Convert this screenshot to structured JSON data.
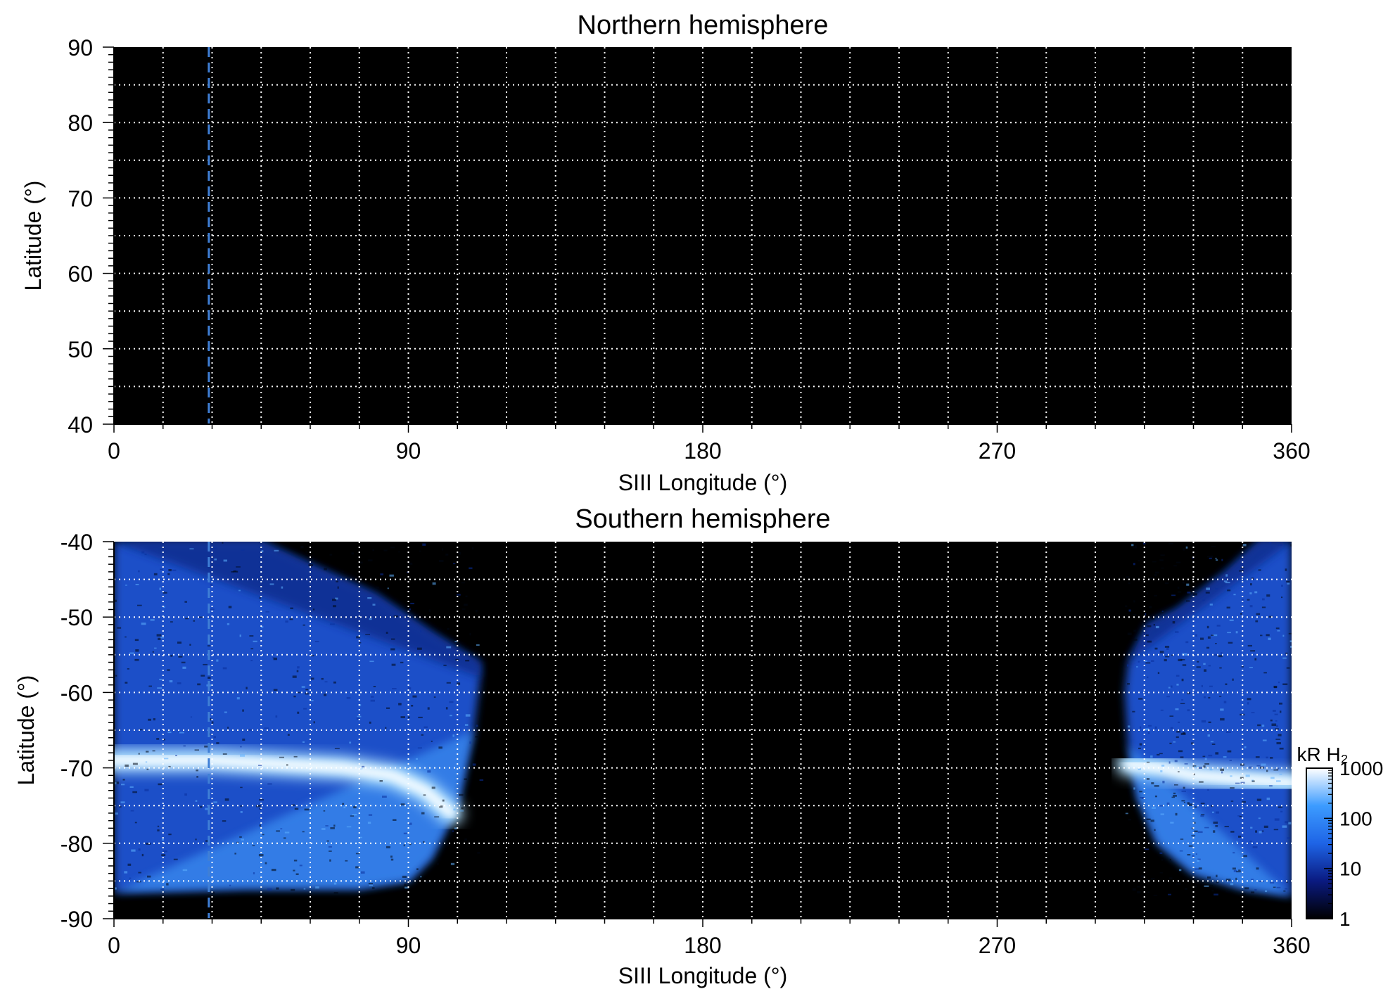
{
  "chart_data": [
    {
      "type": "heatmap",
      "title": "Northern hemisphere",
      "xlabel": "SIII Longitude (°)",
      "ylabel": "Latitude (°)",
      "xlim": [
        0,
        360
      ],
      "ylim": [
        40,
        90
      ],
      "xticks": [
        0,
        90,
        180,
        270,
        360
      ],
      "xtick_labels": [
        "0",
        "90",
        "180",
        "270",
        "360"
      ],
      "yticks": [
        40,
        50,
        60,
        70,
        80,
        90
      ],
      "ytick_labels": [
        "40",
        "50",
        "60",
        "70",
        "80",
        "90"
      ],
      "grid": true,
      "grid_step_x": 15,
      "grid_step_y": 5,
      "background": "#000000",
      "marker_line_longitude": 29,
      "emission": []
    },
    {
      "type": "heatmap",
      "title": "Southern hemisphere",
      "xlabel": "SIII Longitude (°)",
      "ylabel": "Latitude (°)",
      "xlim": [
        0,
        360
      ],
      "ylim": [
        -90,
        -40
      ],
      "xticks": [
        0,
        90,
        180,
        270,
        360
      ],
      "xtick_labels": [
        "0",
        "90",
        "180",
        "270",
        "360"
      ],
      "yticks": [
        -90,
        -80,
        -70,
        -60,
        -50,
        -40
      ],
      "ytick_labels": [
        "-90",
        "-80",
        "-70",
        "-60",
        "-50",
        "-40"
      ],
      "grid": true,
      "grid_step_x": 15,
      "grid_step_y": 5,
      "background": "#000000",
      "marker_line_longitude": 29,
      "emission": [
        {
          "region": "west",
          "boundary_lon_lat": [
            [
              0,
              -40
            ],
            [
              45,
              -40
            ],
            [
              80,
              -47
            ],
            [
              97,
              -52
            ],
            [
              108,
              -55
            ],
            [
              112,
              -56
            ],
            [
              112,
              -58
            ],
            [
              110,
              -65
            ],
            [
              105,
              -75
            ],
            [
              97,
              -82
            ],
            [
              90,
              -85
            ],
            [
              75,
              -86
            ],
            [
              40,
              -86
            ],
            [
              0,
              -86.5
            ]
          ],
          "oval": [
            [
              0,
              -69
            ],
            [
              15,
              -69
            ],
            [
              30,
              -69
            ],
            [
              50,
              -69.5
            ],
            [
              70,
              -70
            ],
            [
              85,
              -71
            ],
            [
              95,
              -73
            ],
            [
              103,
              -76
            ]
          ],
          "oval_peak_kR": 1000,
          "polar_mean_kR": 100,
          "high_lat_mean_kR": 10
        },
        {
          "region": "east",
          "boundary_lon_lat": [
            [
              360,
              -40
            ],
            [
              350,
              -40
            ],
            [
              340,
              -44
            ],
            [
              325,
              -49
            ],
            [
              316,
              -51
            ],
            [
              310,
              -56
            ],
            [
              309,
              -60
            ],
            [
              310,
              -67
            ],
            [
              313,
              -74
            ],
            [
              319,
              -80
            ],
            [
              330,
              -84
            ],
            [
              345,
              -86
            ],
            [
              360,
              -87
            ]
          ],
          "oval": [
            [
              310,
              -69.5
            ],
            [
              320,
              -70
            ],
            [
              330,
              -71
            ],
            [
              345,
              -71.5
            ],
            [
              360,
              -72
            ]
          ],
          "oval_peak_kR": 1000,
          "polar_mean_kR": 100,
          "high_lat_mean_kR": 10
        }
      ],
      "colorbar": {
        "title": "kR H₂",
        "scale": "log",
        "range": [
          1,
          1000
        ],
        "ticks": [
          1,
          10,
          100,
          1000
        ],
        "tick_labels": [
          "1",
          "10",
          "100",
          "1000"
        ],
        "colors": [
          "#000000",
          "#0a1a80",
          "#1e64e6",
          "#3c9bff",
          "#ffffff"
        ]
      }
    }
  ]
}
